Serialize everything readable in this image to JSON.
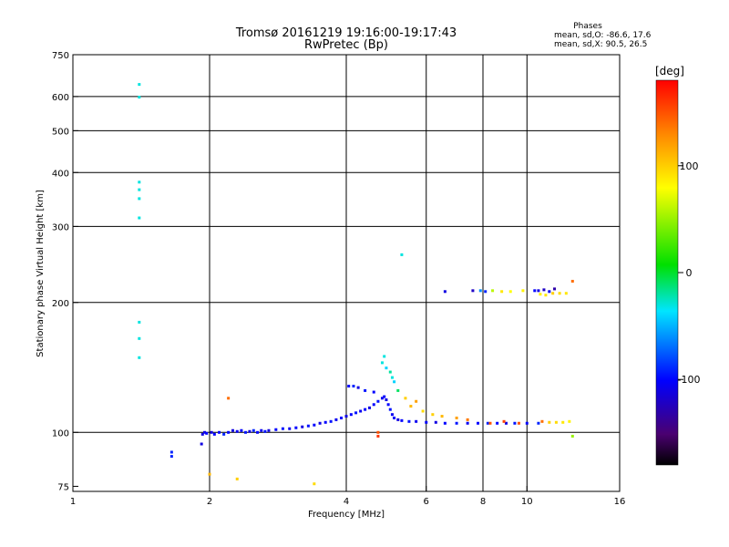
{
  "chart_data": {
    "type": "scatter",
    "title": "Tromsø 20161219 19:16:00-19:17:43",
    "subtitle": "RwPretec (Bp)",
    "annotation": {
      "heading": "Phases",
      "line1": "mean, sd,O: -86.6, 17.6",
      "line2": "mean, sd,X:  90.5, 26.5"
    },
    "xlabel": "Frequency [MHz]",
    "ylabel": "Stationary phase Virtual Height [km]",
    "xscale": "log",
    "yscale": "log",
    "xlim": [
      1,
      16
    ],
    "ylim": [
      73,
      750
    ],
    "x_ticks": [
      1,
      2,
      4,
      6,
      8,
      10,
      16
    ],
    "y_ticks": [
      75,
      100,
      200,
      300,
      400,
      500,
      600,
      750
    ],
    "x_grid": [
      2,
      4,
      6,
      8,
      10
    ],
    "y_grid": [
      100,
      200,
      300,
      400,
      500,
      600
    ],
    "colorbar": {
      "label": "[deg]",
      "range": [
        -180,
        180
      ],
      "ticks": [
        100,
        0,
        -100
      ]
    },
    "points": [
      [
        1.4,
        640,
        -30
      ],
      [
        1.4,
        598,
        -30
      ],
      [
        1.4,
        380,
        -30
      ],
      [
        1.4,
        365,
        -30
      ],
      [
        1.4,
        348,
        -30
      ],
      [
        1.4,
        314,
        -30
      ],
      [
        1.4,
        180,
        -30
      ],
      [
        1.4,
        165,
        -30
      ],
      [
        1.4,
        149,
        -30
      ],
      [
        1.65,
        90,
        -90
      ],
      [
        1.65,
        88,
        -90
      ],
      [
        1.92,
        94,
        -110
      ],
      [
        1.93,
        99,
        -110
      ],
      [
        1.95,
        100,
        -110
      ],
      [
        1.97,
        99.5,
        -100
      ],
      [
        2.02,
        100,
        -110
      ],
      [
        2.05,
        99,
        -100
      ],
      [
        2.1,
        100,
        -100
      ],
      [
        2.15,
        99,
        -90
      ],
      [
        2.2,
        100,
        -100
      ],
      [
        2.25,
        101,
        -110
      ],
      [
        2.3,
        100.5,
        -105
      ],
      [
        2.35,
        101,
        -100
      ],
      [
        2.4,
        100,
        -95
      ],
      [
        2.45,
        100.5,
        -110
      ],
      [
        2.5,
        101,
        -90
      ],
      [
        2.55,
        100,
        -100
      ],
      [
        2.6,
        101,
        -105
      ],
      [
        2.65,
        100.5,
        -95
      ],
      [
        2.7,
        101,
        -110
      ],
      [
        2.8,
        101.5,
        -100
      ],
      [
        2.9,
        102,
        -95
      ],
      [
        3.0,
        102,
        -105
      ],
      [
        3.1,
        102.5,
        -100
      ],
      [
        3.2,
        103,
        -110
      ],
      [
        3.3,
        103.5,
        -95
      ],
      [
        3.4,
        104,
        -100
      ],
      [
        3.5,
        105,
        -110
      ],
      [
        3.6,
        105.5,
        -100
      ],
      [
        3.7,
        106,
        -95
      ],
      [
        3.8,
        107,
        -105
      ],
      [
        3.9,
        108,
        -100
      ],
      [
        4.0,
        109,
        -110
      ],
      [
        4.1,
        110,
        -100
      ],
      [
        4.2,
        111,
        -95
      ],
      [
        4.3,
        112,
        -105
      ],
      [
        4.4,
        113,
        -100
      ],
      [
        4.5,
        114,
        -110
      ],
      [
        4.6,
        116,
        -100
      ],
      [
        4.7,
        118,
        -95
      ],
      [
        4.8,
        120,
        -105
      ],
      [
        4.85,
        121,
        -100
      ],
      [
        4.9,
        119,
        -110
      ],
      [
        4.95,
        116,
        -100
      ],
      [
        5.0,
        113,
        -95
      ],
      [
        5.05,
        110,
        -105
      ],
      [
        5.1,
        108,
        -100
      ],
      [
        5.2,
        107,
        -110
      ],
      [
        5.3,
        106.5,
        -100
      ],
      [
        5.5,
        106,
        -95
      ],
      [
        5.7,
        106,
        -105
      ],
      [
        6.0,
        105.5,
        -100
      ],
      [
        6.3,
        105.5,
        -110
      ],
      [
        6.6,
        105,
        -100
      ],
      [
        7.0,
        105,
        -95
      ],
      [
        7.4,
        105,
        -105
      ],
      [
        7.8,
        105,
        -100
      ],
      [
        8.2,
        105,
        -90
      ],
      [
        8.6,
        105,
        -100
      ],
      [
        9.0,
        105,
        -110
      ],
      [
        9.4,
        105,
        -95
      ],
      [
        10.0,
        105,
        -100
      ],
      [
        10.6,
        105,
        -90
      ],
      [
        11.2,
        105.5,
        100
      ],
      [
        11.6,
        105.5,
        95
      ],
      [
        12.0,
        105.5,
        90
      ],
      [
        12.4,
        106,
        85
      ],
      [
        4.05,
        128,
        -100
      ],
      [
        4.15,
        128,
        -90
      ],
      [
        4.25,
        127,
        -110
      ],
      [
        4.4,
        125,
        -95
      ],
      [
        4.6,
        124,
        -100
      ],
      [
        4.8,
        145,
        -30
      ],
      [
        4.9,
        141,
        -40
      ],
      [
        5.0,
        138,
        -20
      ],
      [
        5.05,
        134,
        -30
      ],
      [
        5.1,
        131,
        -40
      ],
      [
        4.85,
        150,
        -30
      ],
      [
        5.2,
        125,
        -10
      ],
      [
        5.4,
        120,
        100
      ],
      [
        5.55,
        115,
        110
      ],
      [
        5.7,
        118,
        120
      ],
      [
        5.9,
        112,
        95
      ],
      [
        6.2,
        110,
        100
      ],
      [
        6.5,
        109,
        110
      ],
      [
        7.0,
        108,
        120
      ],
      [
        7.4,
        107,
        135
      ],
      [
        2.2,
        120,
        140
      ],
      [
        2.0,
        80,
        110
      ],
      [
        2.3,
        78,
        100
      ],
      [
        3.4,
        76,
        95
      ],
      [
        4.7,
        100,
        150
      ],
      [
        4.7,
        98,
        160
      ],
      [
        5.3,
        258,
        -30
      ],
      [
        6.6,
        212,
        -110
      ],
      [
        7.6,
        213,
        -120
      ],
      [
        7.9,
        213,
        -60
      ],
      [
        8.1,
        212,
        -90
      ],
      [
        8.4,
        213,
        60
      ],
      [
        8.8,
        212,
        90
      ],
      [
        9.2,
        212,
        80
      ],
      [
        9.8,
        213,
        85
      ],
      [
        10.4,
        213,
        -100
      ],
      [
        10.6,
        213,
        -110
      ],
      [
        10.9,
        214,
        -120
      ],
      [
        11.2,
        212,
        -105
      ],
      [
        11.5,
        215,
        -130
      ],
      [
        10.7,
        209,
        85
      ],
      [
        11.0,
        208,
        90
      ],
      [
        11.4,
        210,
        100
      ],
      [
        11.8,
        210,
        95
      ],
      [
        12.2,
        210,
        90
      ],
      [
        12.6,
        224,
        140
      ],
      [
        12.6,
        98,
        50
      ],
      [
        8.3,
        105,
        150
      ],
      [
        8.9,
        106,
        155
      ],
      [
        9.6,
        105,
        150
      ],
      [
        10.8,
        106,
        140
      ]
    ]
  }
}
